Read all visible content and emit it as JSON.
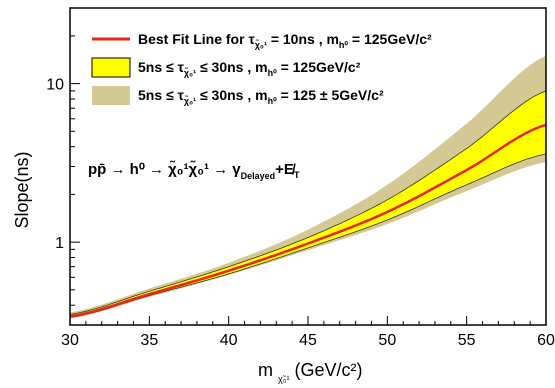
{
  "chart_data": {
    "type": "area",
    "xlabel": "m",
    "xlabel_sub": "χ̃₀¹",
    "xlabel_unit": "(GeV/c²)",
    "ylabel": "Slope(ns)",
    "xlim": [
      30,
      60
    ],
    "ylim": [
      0.3,
      30
    ],
    "yscale": "log",
    "x_ticks": [
      "30",
      "35",
      "40",
      "45",
      "50",
      "55",
      "60"
    ],
    "y_ticks": [
      "1",
      "10"
    ],
    "grid": false,
    "legend_position": "top-left",
    "legend": [
      {
        "marker": "line",
        "prefix": "Best Fit Line for τ",
        "sub": "χ̃₀¹",
        "mid": " = 10ns , m",
        "sub2": "h⁰",
        "suffix": " = 125GeV/c²"
      },
      {
        "marker": "yellow-box",
        "prefix": "5ns ≤ τ",
        "sub": "χ̃₀¹",
        "mid": " ≤ 30ns , m",
        "sub2": "h⁰",
        "suffix": " = 125GeV/c²"
      },
      {
        "marker": "tan-box",
        "prefix": "5ns ≤ τ",
        "sub": "χ̃₀¹",
        "mid": " ≤ 30ns , m",
        "sub2": "h⁰",
        "suffix": " = 125 ± 5GeV/c²"
      }
    ],
    "annotation": {
      "main": "pp̄ → h⁰ → χ̃₀¹χ̃₀¹ → γ",
      "sub": "Delayed",
      "tail": "+E̸",
      "tail_sub": "T"
    },
    "series": [
      {
        "name": "Best Fit Line for τ = 10ns",
        "color": "#e8261e",
        "x": [
          30,
          35,
          40,
          45,
          50,
          55,
          60
        ],
        "y": [
          0.34,
          0.47,
          0.66,
          0.98,
          1.55,
          2.85,
          5.5
        ]
      }
    ],
    "bands": [
      {
        "name": "5ns ≤ τ ≤ 30ns , m = 125 ± 5GeV/c²",
        "color": "#d4c995",
        "x": [
          30,
          35,
          40,
          45,
          50,
          55,
          60
        ],
        "upper": [
          0.36,
          0.51,
          0.74,
          1.2,
          2.3,
          5.6,
          15
        ],
        "lower": [
          0.33,
          0.45,
          0.62,
          0.89,
          1.3,
          2.1,
          3.2
        ]
      },
      {
        "name": "5ns ≤ τ ≤ 30ns , m = 125GeV/c²",
        "color": "#ffff00",
        "x": [
          30,
          35,
          40,
          45,
          50,
          55,
          60
        ],
        "upper": [
          0.35,
          0.49,
          0.7,
          1.07,
          1.85,
          3.9,
          9.0
        ],
        "lower": [
          0.335,
          0.46,
          0.63,
          0.92,
          1.38,
          2.3,
          3.6
        ]
      }
    ]
  }
}
